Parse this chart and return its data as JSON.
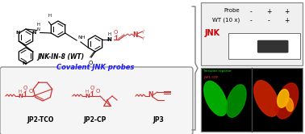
{
  "background_color": "#ffffff",
  "left_panel": {
    "jnk_label": "JNK-IN-8 (WT)",
    "covalent_label": "Covalent JNK probes",
    "probe_labels": [
      "JP2-TCO",
      "JP2-CP",
      "JP3"
    ],
    "probe_color": "#cc3333",
    "label_color": "#1a1aff"
  },
  "right_top_panel": {
    "row1_label": "Probe",
    "row2_label": "WT (10 x)",
    "row1_signs": [
      "-",
      "+",
      "+"
    ],
    "row2_signs": [
      "-",
      "-",
      "+"
    ],
    "jnk_label": "JNK",
    "jnk_color": "#cc0000",
    "band_color": "#333333"
  },
  "right_bottom_panel": {
    "left_label_line1": "Tetrazine reporter",
    "left_label_line2": "JNK1-GFP",
    "left_cell_color": "#00cc00",
    "right_cell_color1": "#cc2200",
    "right_cell_color2": "#ffcc00"
  },
  "bracket_color": "#808080",
  "figsize": [
    3.78,
    1.66
  ],
  "dpi": 100
}
